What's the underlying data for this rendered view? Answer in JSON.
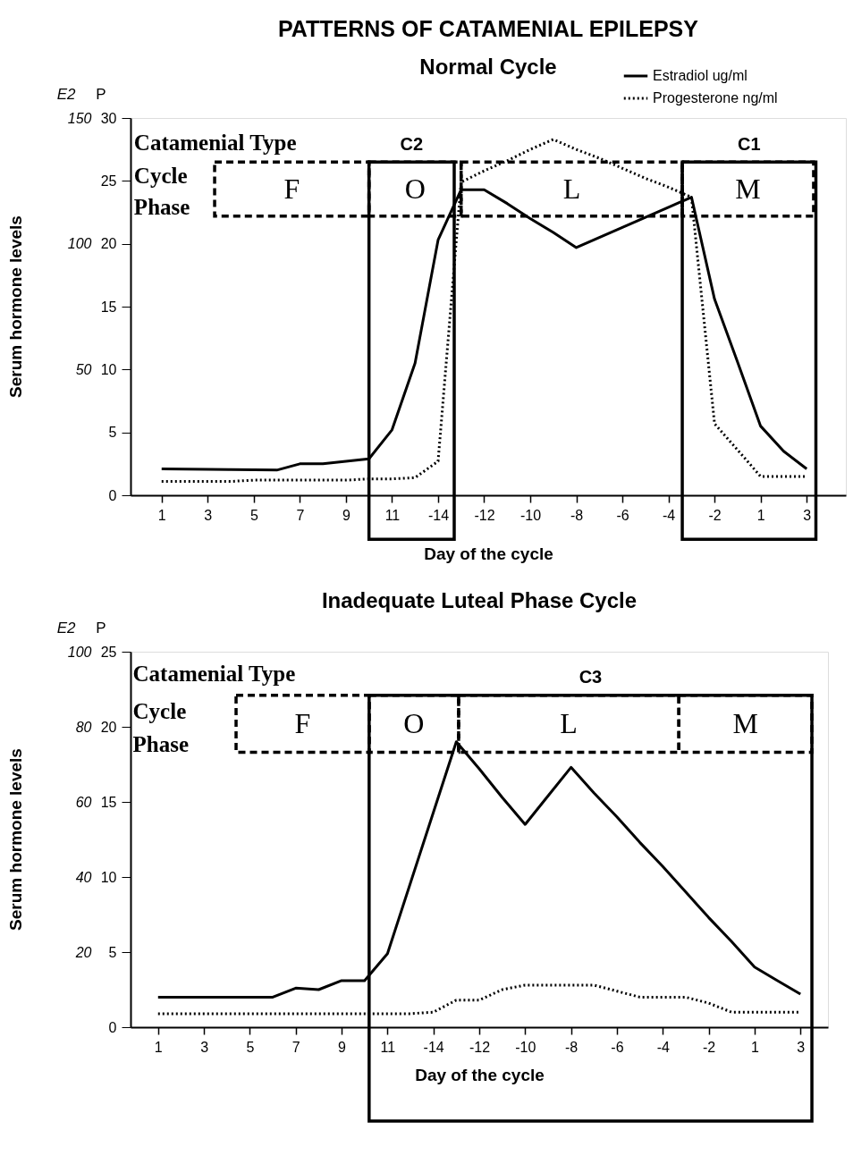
{
  "chart_data": [
    {
      "type": "line",
      "title": "PATTERNS OF CATAMENIAL EPILEPSY",
      "subtitle": "Normal Cycle",
      "xlabel": "Day of the cycle",
      "ylabel": "P",
      "y2label": "E2",
      "annotations": [
        "Serum hormone levels",
        "Catamenial Type",
        "Cycle",
        "Phase",
        "F",
        "O",
        "L",
        "M",
        "C2",
        "C1"
      ],
      "categories": [
        "1",
        null,
        "3",
        null,
        "5",
        null,
        "7",
        null,
        "9",
        null,
        "11",
        null,
        "-14",
        null,
        "-12",
        null,
        "-10",
        null,
        "-8",
        null,
        "-6",
        null,
        "-4",
        null,
        "-2",
        null,
        "1",
        null,
        "3"
      ],
      "ylim": [
        0,
        30
      ],
      "yticks": [
        0,
        5,
        10,
        15,
        20,
        25,
        30
      ],
      "y2lim": [
        0,
        150
      ],
      "y2ticks": [
        50,
        100,
        150
      ],
      "series": [
        {
          "name": "Estradiol ug/ml",
          "color": "#000000",
          "axis": "y2",
          "line_style": "solid",
          "values": [
            10.5,
            10.4,
            10.3,
            10.2,
            10.1,
            10,
            12.5,
            12.5,
            13.5,
            14.5,
            26,
            52.5,
            101.5,
            121.5,
            121.5,
            116,
            110,
            104.5,
            98.5,
            102.5,
            106.5,
            110.5,
            114.5,
            118.5,
            78,
            53,
            27.5,
            17.5,
            10.5
          ]
        },
        {
          "name": "Progesterone ng/ml",
          "color": "#000000",
          "line_style": "dotted",
          "values": [
            1.1,
            1.1,
            1.1,
            1.1,
            1.2,
            1.2,
            1.2,
            1.2,
            1.2,
            1.3,
            1.3,
            1.4,
            2.7,
            24.9,
            25.8,
            26.6,
            27.5,
            28.3,
            27.5,
            26.8,
            26.0,
            25.2,
            24.5,
            23.7,
            5.7,
            3.6,
            1.5,
            1.5,
            1.5
          ]
        }
      ],
      "legend": "top right",
      "grid": false,
      "marker": "none"
    },
    {
      "type": "line",
      "title": "Inadequate Luteal Phase Cycle",
      "xlabel": "Day of the cycle",
      "ylabel": "P",
      "y2label": "E2",
      "annotations": [
        "Serum hormone levels",
        "Catamenial Type",
        "Cycle",
        "Phase",
        "F",
        "O",
        "L",
        "M",
        "C3"
      ],
      "categories": [
        "1",
        null,
        "3",
        null,
        "5",
        null,
        "7",
        null,
        "9",
        null,
        "11",
        null,
        "-14",
        null,
        "-12",
        null,
        "-10",
        null,
        "-8",
        null,
        "-6",
        null,
        "-4",
        null,
        "-2",
        null,
        "1",
        null,
        "3"
      ],
      "ylim": [
        0,
        25
      ],
      "yticks": [
        0,
        5,
        10,
        15,
        20,
        25
      ],
      "y2lim": [
        0,
        100
      ],
      "y2ticks": [
        20,
        40,
        60,
        80,
        100
      ],
      "series": [
        {
          "name": "Estradiol ug/ml",
          "color": "#000000",
          "axis": "y2",
          "line_style": "solid",
          "values": [
            8,
            8,
            8,
            8,
            8,
            8,
            10.4,
            10,
            12.4,
            12.4,
            19.6,
            38.4,
            57.2,
            76,
            68.8,
            61.2,
            54,
            61.6,
            69.2,
            62.4,
            56,
            49.2,
            42.8,
            36,
            29.2,
            22.8,
            16,
            12.4,
            8.8
          ]
        },
        {
          "name": "Progesterone ng/ml",
          "color": "#000000",
          "line_style": "dotted",
          "values": [
            0.9,
            0.9,
            0.9,
            0.9,
            0.9,
            0.9,
            0.9,
            0.9,
            0.9,
            0.9,
            0.9,
            0.9,
            1.0,
            1.8,
            1.8,
            2.5,
            2.8,
            2.8,
            2.8,
            2.8,
            2.4,
            2.0,
            2.0,
            2.0,
            1.6,
            1.0,
            1.0,
            1.0,
            1.0
          ]
        }
      ],
      "legend": "top right",
      "grid": false,
      "marker": "none"
    }
  ]
}
